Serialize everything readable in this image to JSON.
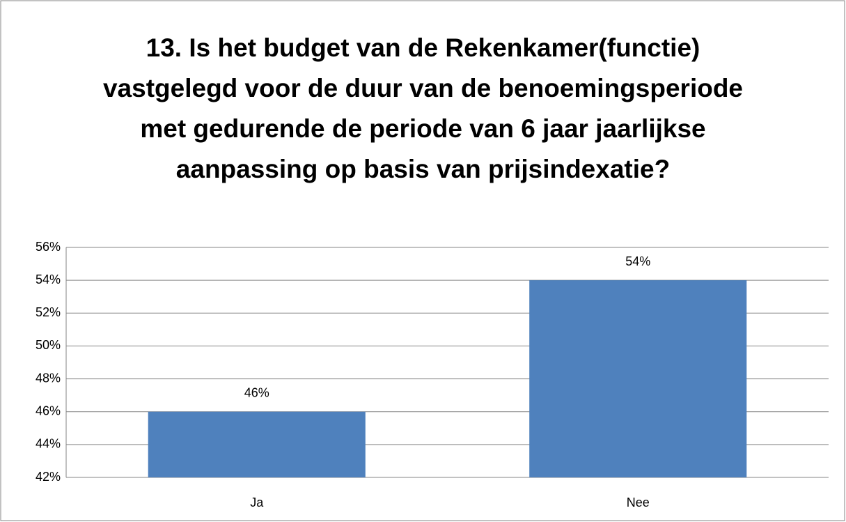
{
  "chart_data": {
    "type": "bar",
    "title": "13. Is het budget van de Rekenkamer(functie) vastgelegd voor de duur van de benoemingsperiode met gedurende de periode van 6 jaar jaarlijkse aanpassing op basis van prijsindexatie?",
    "categories": [
      "Ja",
      "Nee"
    ],
    "values": [
      46,
      54
    ],
    "value_labels": [
      "46%",
      "54%"
    ],
    "color": "#4f81bd",
    "ylim": [
      42,
      56
    ],
    "yticks": [
      {
        "value": 42,
        "label": "42%"
      },
      {
        "value": 44,
        "label": "44%"
      },
      {
        "value": 46,
        "label": "46%"
      },
      {
        "value": 48,
        "label": "48%"
      },
      {
        "value": 50,
        "label": "50%"
      },
      {
        "value": 52,
        "label": "52%"
      },
      {
        "value": 54,
        "label": "54%"
      },
      {
        "value": 56,
        "label": "56%"
      }
    ],
    "grid": true
  }
}
